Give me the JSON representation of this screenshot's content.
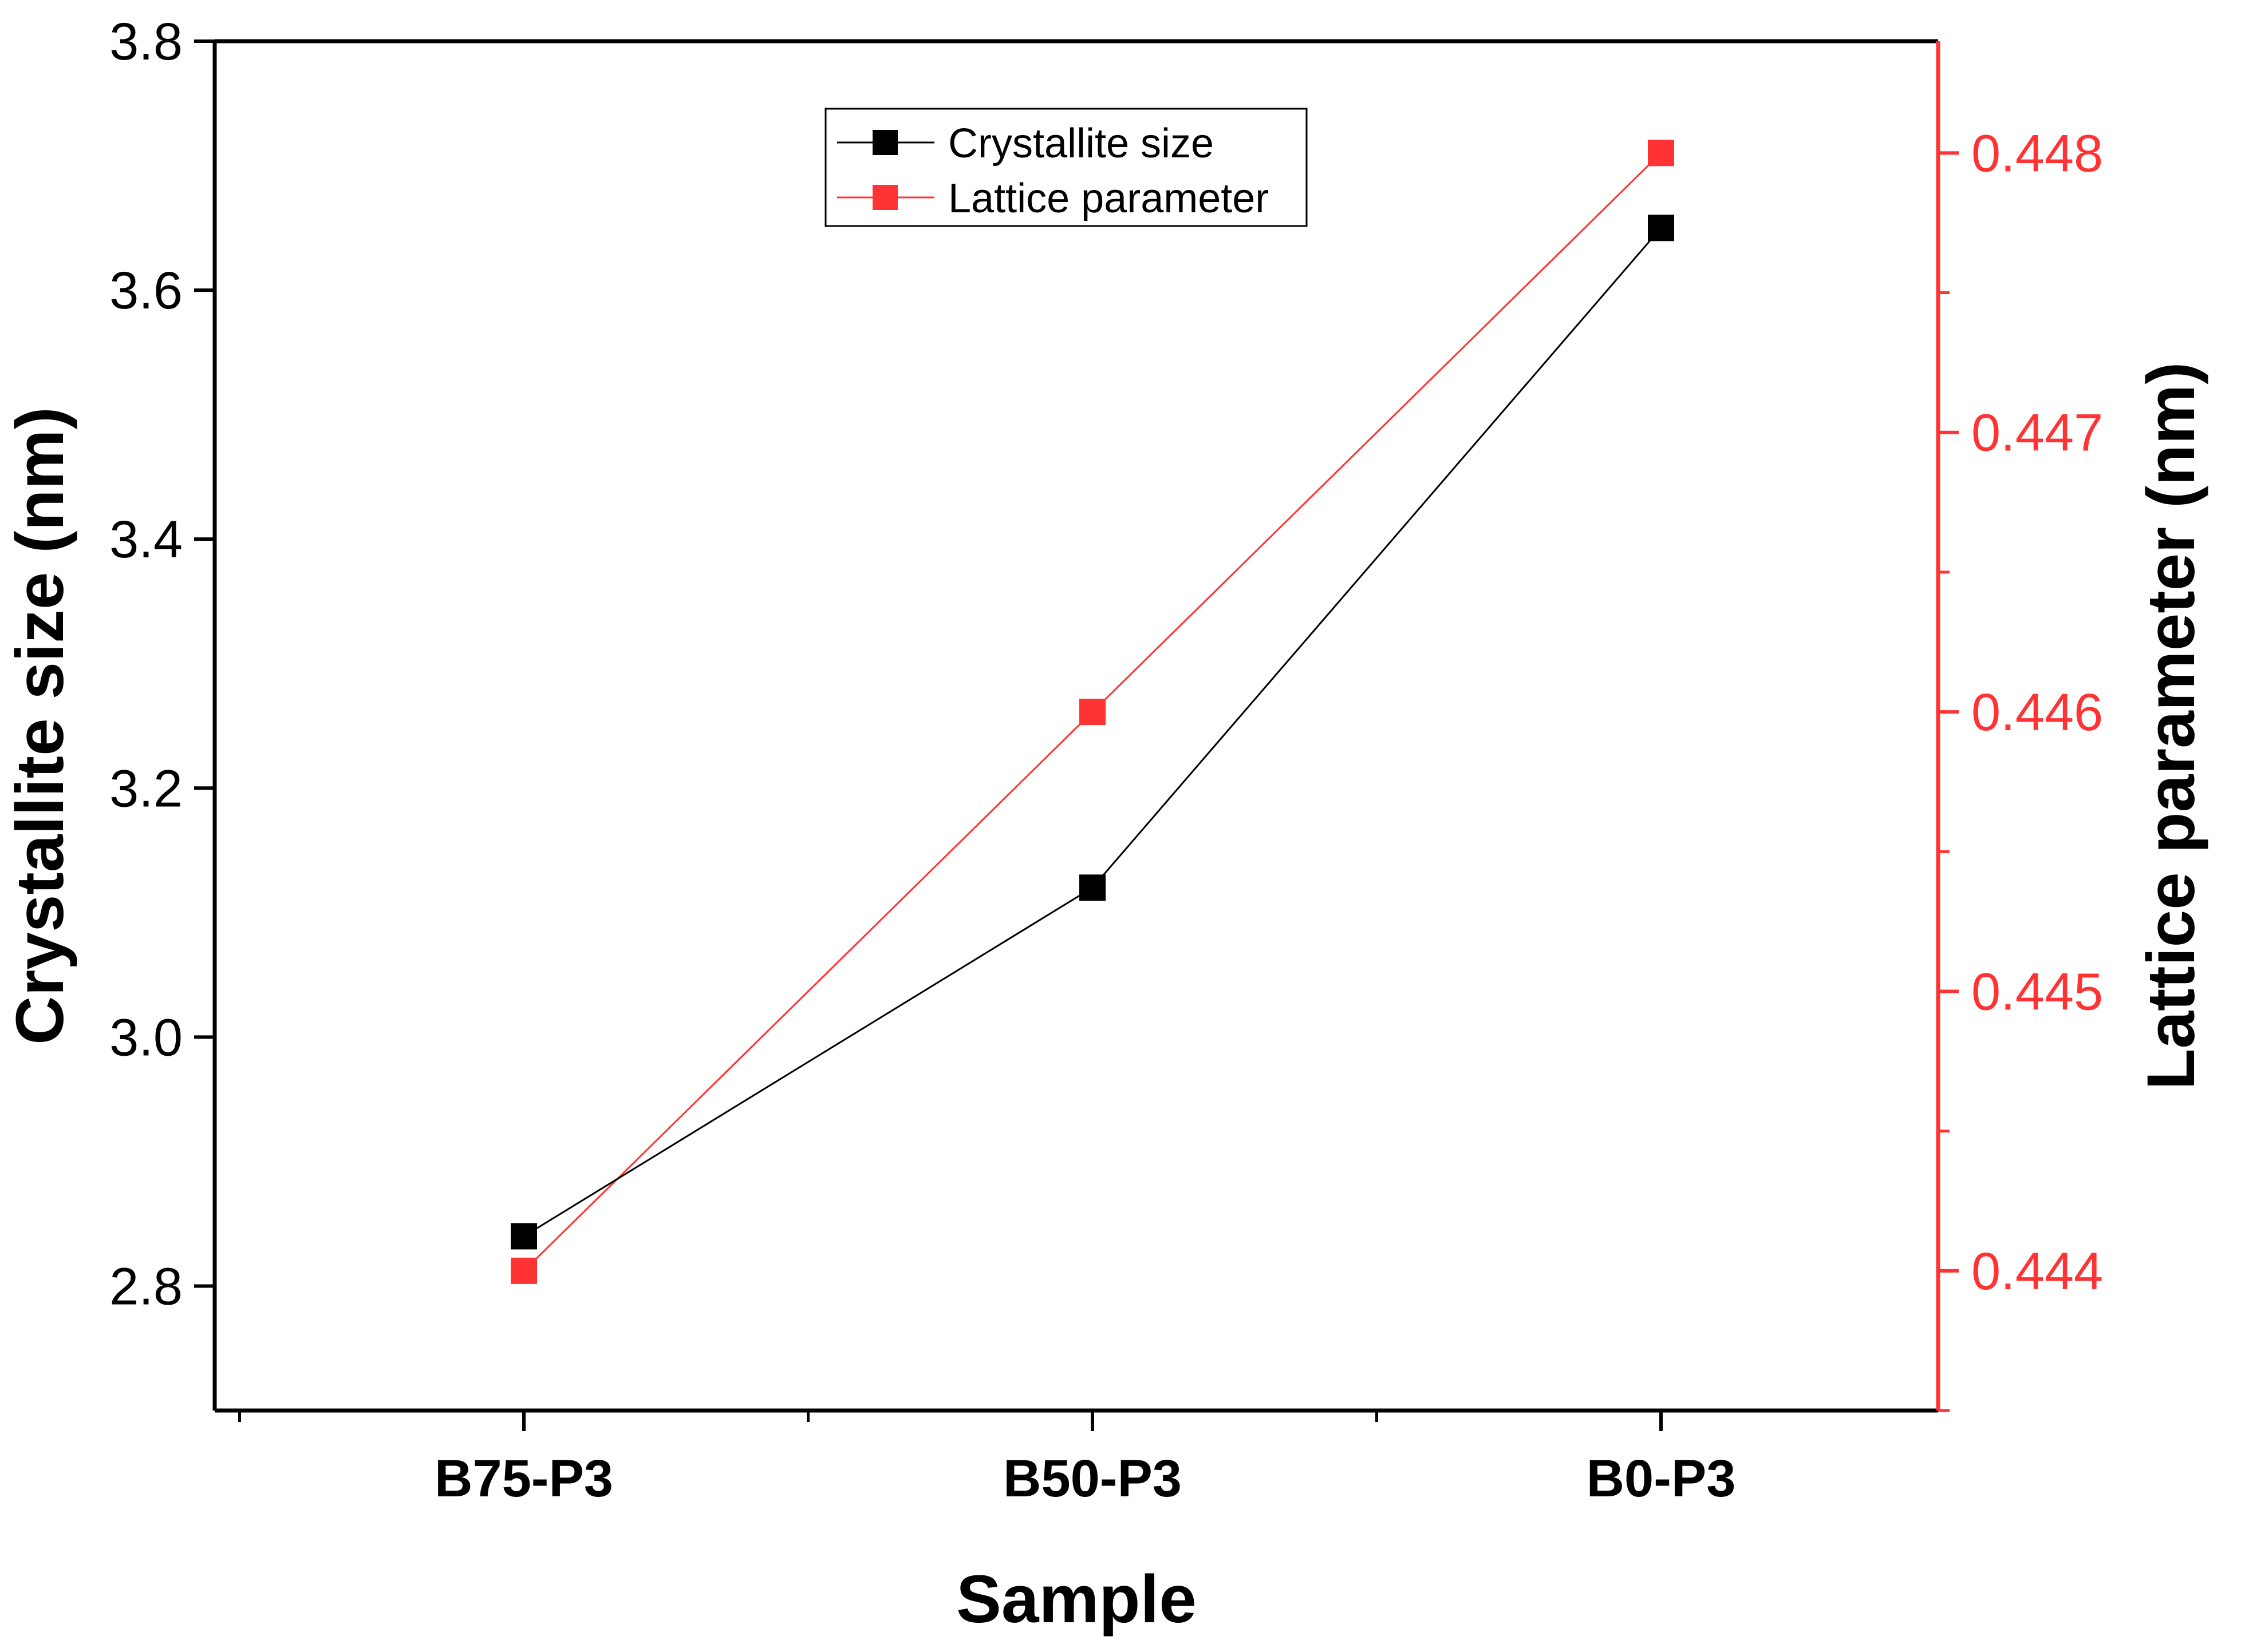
{
  "chart_data": {
    "type": "line",
    "categories": [
      "B75-P3",
      "B50-P3",
      "B0-P3"
    ],
    "xlabel": "Sample",
    "ylabel": "Crystallite size (nm)",
    "ylabel_right": "Lattice parameter (nm)",
    "ylim": [
      2.7,
      3.8
    ],
    "yticks": [
      "2.8",
      "3.0",
      "3.2",
      "3.4",
      "3.6",
      "3.8"
    ],
    "ylim_right": [
      0.4435,
      0.4484
    ],
    "yticks_right": [
      "0.444",
      "0.445",
      "0.446",
      "0.447",
      "0.448"
    ],
    "legend_position": "top-center",
    "series": [
      {
        "name": "Crystallite size",
        "axis": "left",
        "color": "#000000",
        "values": [
          2.84,
          3.12,
          3.65
        ]
      },
      {
        "name": "Lattice parameter",
        "axis": "right",
        "color": "#ff3333",
        "values": [
          0.444,
          0.446,
          0.448
        ]
      }
    ],
    "colors": {
      "axis": "#000000",
      "right_axis": "#ff3333"
    }
  }
}
